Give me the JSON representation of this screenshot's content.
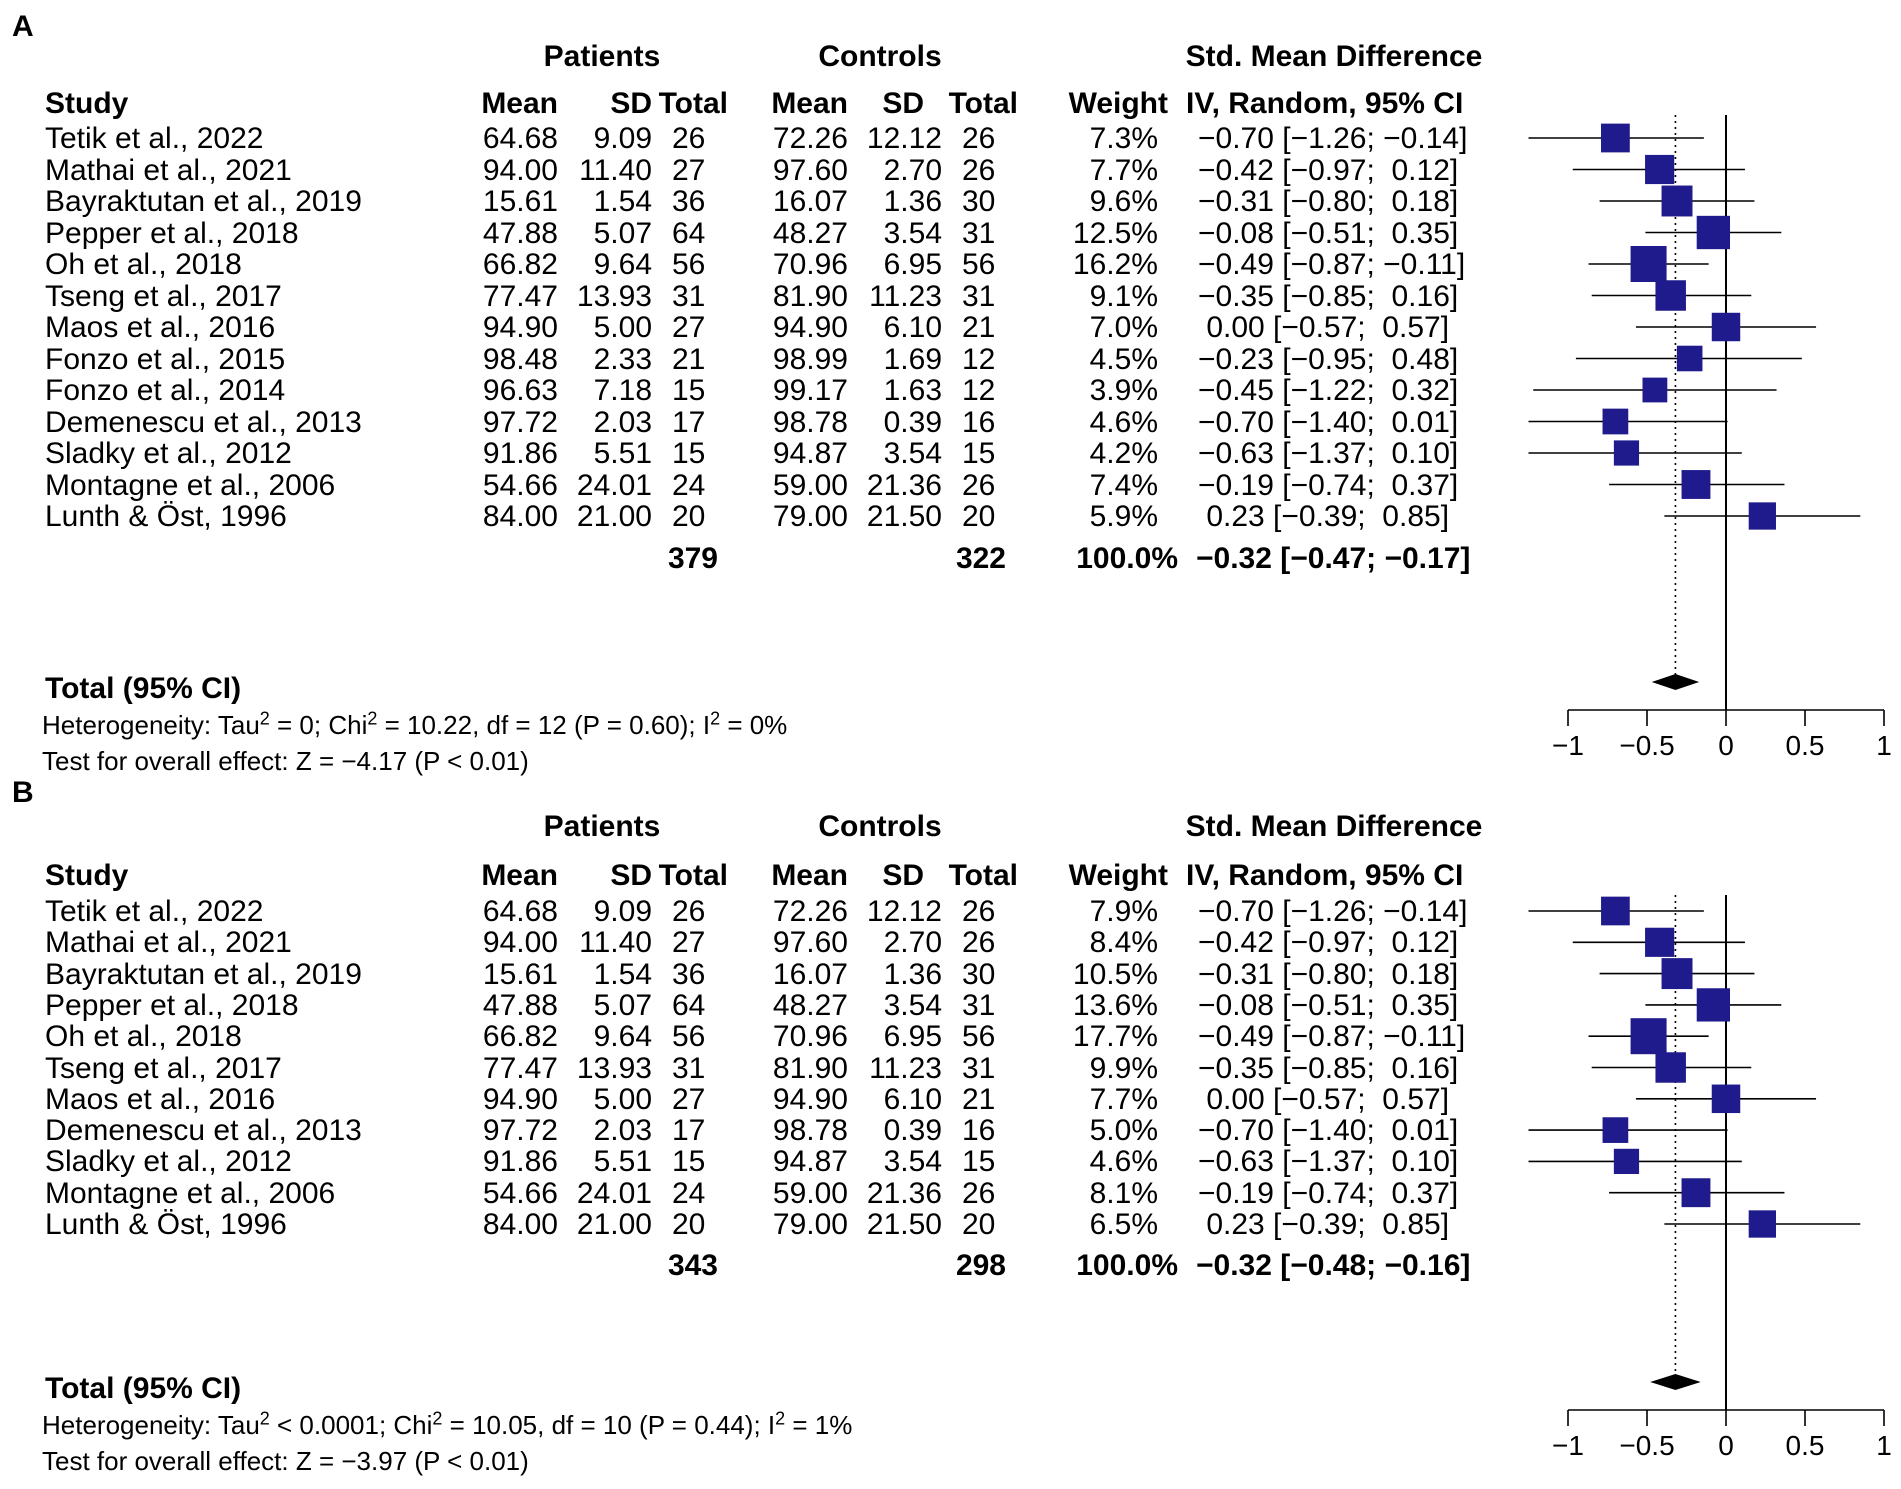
{
  "colors": {
    "square": "#1f1b8c",
    "line": "#000000"
  },
  "panels": [
    {
      "letter": "A",
      "group_patients": "Patients",
      "group_controls": "Controls",
      "effect_title": "Std. Mean Difference",
      "col_study": "Study",
      "col_mean": "Mean",
      "col_sd": "SD",
      "col_total": "Total",
      "col_weight": "Weight",
      "col_ci": "IV, Random, 95% CI",
      "rows": [
        {
          "study": "Tetik et al., 2022",
          "pm": "64.68",
          "psd": "9.09",
          "pn": "26",
          "cm": "72.26",
          "csd": "12.12",
          "cn": "26",
          "w": "7.3%",
          "ci": "−0.70 [−1.26; −0.14]"
        },
        {
          "study": "Mathai et al., 2021",
          "pm": "94.00",
          "psd": "11.40",
          "pn": "27",
          "cm": "97.60",
          "csd": "2.70",
          "cn": "26",
          "w": "7.7%",
          "ci": "−0.42 [−0.97;  0.12]"
        },
        {
          "study": "Bayraktutan et al., 2019",
          "pm": "15.61",
          "psd": "1.54",
          "pn": "36",
          "cm": "16.07",
          "csd": "1.36",
          "cn": "30",
          "w": "9.6%",
          "ci": "−0.31 [−0.80;  0.18]"
        },
        {
          "study": "Pepper et al., 2018",
          "pm": "47.88",
          "psd": "5.07",
          "pn": "64",
          "cm": "48.27",
          "csd": "3.54",
          "cn": "31",
          "w": "12.5%",
          "ci": "−0.08 [−0.51;  0.35]"
        },
        {
          "study": "Oh et al., 2018",
          "pm": "66.82",
          "psd": "9.64",
          "pn": "56",
          "cm": "70.96",
          "csd": "6.95",
          "cn": "56",
          "w": "16.2%",
          "ci": "−0.49 [−0.87; −0.11]"
        },
        {
          "study": "Tseng et al., 2017",
          "pm": "77.47",
          "psd": "13.93",
          "pn": "31",
          "cm": "81.90",
          "csd": "11.23",
          "cn": "31",
          "w": "9.1%",
          "ci": "−0.35 [−0.85;  0.16]"
        },
        {
          "study": "Maos et al., 2016",
          "pm": "94.90",
          "psd": "5.00",
          "pn": "27",
          "cm": "94.90",
          "csd": "6.10",
          "cn": "21",
          "w": "7.0%",
          "ci": " 0.00 [−0.57;  0.57]"
        },
        {
          "study": "Fonzo et al., 2015",
          "pm": "98.48",
          "psd": "2.33",
          "pn": "21",
          "cm": "98.99",
          "csd": "1.69",
          "cn": "12",
          "w": "4.5%",
          "ci": "−0.23 [−0.95;  0.48]"
        },
        {
          "study": "Fonzo et al., 2014",
          "pm": "96.63",
          "psd": "7.18",
          "pn": "15",
          "cm": "99.17",
          "csd": "1.63",
          "cn": "12",
          "w": "3.9%",
          "ci": "−0.45 [−1.22;  0.32]"
        },
        {
          "study": "Demenescu et al., 2013",
          "pm": "97.72",
          "psd": "2.03",
          "pn": "17",
          "cm": "98.78",
          "csd": "0.39",
          "cn": "16",
          "w": "4.6%",
          "ci": "−0.70 [−1.40;  0.01]"
        },
        {
          "study": "Sladky et al., 2012",
          "pm": "91.86",
          "psd": "5.51",
          "pn": "15",
          "cm": "94.87",
          "csd": "3.54",
          "cn": "15",
          "w": "4.2%",
          "ci": "−0.63 [−1.37;  0.10]"
        },
        {
          "study": "Montagne et al., 2006",
          "pm": "54.66",
          "psd": "24.01",
          "pn": "24",
          "cm": "59.00",
          "csd": "21.36",
          "cn": "26",
          "w": "7.4%",
          "ci": "−0.19 [−0.74;  0.37]"
        },
        {
          "study": "Lunth & Öst, 1996",
          "pm": "84.00",
          "psd": "21.00",
          "pn": "20",
          "cm": "79.00",
          "csd": "21.50",
          "cn": "20",
          "w": "5.9%",
          "ci": " 0.23 [−0.39;  0.85]"
        }
      ],
      "total_patients": "379",
      "total_controls": "322",
      "total_weight": "100.0%",
      "total_ci": "−0.32 [−0.47; −0.17]",
      "total_label": "Total (95% CI)",
      "het_a": "Heterogeneity: Tau",
      "het_b": " = 0; Chi",
      "het_c": " = 10.22, df = 12 (P = 0.60); I",
      "het_d": " = 0%",
      "overall": "Test for overall effect: Z = −4.17 (P < 0.01)"
    },
    {
      "letter": "B",
      "group_patients": "Patients",
      "group_controls": "Controls",
      "effect_title": "Std. Mean Difference",
      "col_study": "Study",
      "col_mean": "Mean",
      "col_sd": "SD",
      "col_total": "Total",
      "col_weight": "Weight",
      "col_ci": "IV, Random, 95% CI",
      "rows": [
        {
          "study": "Tetik et al., 2022",
          "pm": "64.68",
          "psd": "9.09",
          "pn": "26",
          "cm": "72.26",
          "csd": "12.12",
          "cn": "26",
          "w": "7.9%",
          "ci": "−0.70 [−1.26; −0.14]"
        },
        {
          "study": "Mathai et al., 2021",
          "pm": "94.00",
          "psd": "11.40",
          "pn": "27",
          "cm": "97.60",
          "csd": "2.70",
          "cn": "26",
          "w": "8.4%",
          "ci": "−0.42 [−0.97;  0.12]"
        },
        {
          "study": "Bayraktutan et al., 2019",
          "pm": "15.61",
          "psd": "1.54",
          "pn": "36",
          "cm": "16.07",
          "csd": "1.36",
          "cn": "30",
          "w": "10.5%",
          "ci": "−0.31 [−0.80;  0.18]"
        },
        {
          "study": "Pepper et al., 2018",
          "pm": "47.88",
          "psd": "5.07",
          "pn": "64",
          "cm": "48.27",
          "csd": "3.54",
          "cn": "31",
          "w": "13.6%",
          "ci": "−0.08 [−0.51;  0.35]"
        },
        {
          "study": "Oh et al., 2018",
          "pm": "66.82",
          "psd": "9.64",
          "pn": "56",
          "cm": "70.96",
          "csd": "6.95",
          "cn": "56",
          "w": "17.7%",
          "ci": "−0.49 [−0.87; −0.11]"
        },
        {
          "study": "Tseng et al., 2017",
          "pm": "77.47",
          "psd": "13.93",
          "pn": "31",
          "cm": "81.90",
          "csd": "11.23",
          "cn": "31",
          "w": "9.9%",
          "ci": "−0.35 [−0.85;  0.16]"
        },
        {
          "study": "Maos et al., 2016",
          "pm": "94.90",
          "psd": "5.00",
          "pn": "27",
          "cm": "94.90",
          "csd": "6.10",
          "cn": "21",
          "w": "7.7%",
          "ci": " 0.00 [−0.57;  0.57]"
        },
        {
          "study": "Demenescu et al., 2013",
          "pm": "97.72",
          "psd": "2.03",
          "pn": "17",
          "cm": "98.78",
          "csd": "0.39",
          "cn": "16",
          "w": "5.0%",
          "ci": "−0.70 [−1.40;  0.01]"
        },
        {
          "study": "Sladky et al., 2012",
          "pm": "91.86",
          "psd": "5.51",
          "pn": "15",
          "cm": "94.87",
          "csd": "3.54",
          "cn": "15",
          "w": "4.6%",
          "ci": "−0.63 [−1.37;  0.10]"
        },
        {
          "study": "Montagne et al., 2006",
          "pm": "54.66",
          "psd": "24.01",
          "pn": "24",
          "cm": "59.00",
          "csd": "21.36",
          "cn": "26",
          "w": "8.1%",
          "ci": "−0.19 [−0.74;  0.37]"
        },
        {
          "study": "Lunth & Öst, 1996",
          "pm": "84.00",
          "psd": "21.00",
          "pn": "20",
          "cm": "79.00",
          "csd": "21.50",
          "cn": "20",
          "w": "6.5%",
          "ci": " 0.23 [−0.39;  0.85]"
        }
      ],
      "total_patients": "343",
      "total_controls": "298",
      "total_weight": "100.0%",
      "total_ci": "−0.32 [−0.48; −0.16]",
      "total_label": "Total (95% CI)",
      "het_a": "Heterogeneity: Tau",
      "het_b": " < 0.0001; Chi",
      "het_c": " = 10.05, df = 10 (P = 0.44); I",
      "het_d": " = 1%",
      "overall": "Test for overall effect: Z = −3.97 (P < 0.01)"
    }
  ],
  "chart_data": [
    {
      "type": "forest",
      "title": "A",
      "measure": "Std. Mean Difference (IV, Random, 95% CI)",
      "studies": [
        "Tetik et al., 2022",
        "Mathai et al., 2021",
        "Bayraktutan et al., 2019",
        "Pepper et al., 2018",
        "Oh et al., 2018",
        "Tseng et al., 2017",
        "Maos et al., 2016",
        "Fonzo et al., 2015",
        "Fonzo et al., 2014",
        "Demenescu et al., 2013",
        "Sladky et al., 2012",
        "Montagne et al., 2006",
        "Lunth & Öst, 1996"
      ],
      "estimates": [
        -0.7,
        -0.42,
        -0.31,
        -0.08,
        -0.49,
        -0.35,
        0.0,
        -0.23,
        -0.45,
        -0.7,
        -0.63,
        -0.19,
        0.23
      ],
      "lower": [
        -1.26,
        -0.97,
        -0.8,
        -0.51,
        -0.87,
        -0.85,
        -0.57,
        -0.95,
        -1.22,
        -1.4,
        -1.37,
        -0.74,
        -0.39
      ],
      "upper": [
        -0.14,
        0.12,
        0.18,
        0.35,
        -0.11,
        0.16,
        0.57,
        0.48,
        0.32,
        0.01,
        0.1,
        0.37,
        0.85
      ],
      "weights": [
        7.3,
        7.7,
        9.6,
        12.5,
        16.2,
        9.1,
        7.0,
        4.5,
        3.9,
        4.6,
        4.2,
        7.4,
        5.9
      ],
      "pooled": {
        "estimate": -0.32,
        "lower": -0.47,
        "upper": -0.17
      },
      "xlim": [
        -1,
        1
      ],
      "xticks": [
        "−1",
        "−0.5",
        "0",
        "0.5",
        "1"
      ]
    },
    {
      "type": "forest",
      "title": "B",
      "measure": "Std. Mean Difference (IV, Random, 95% CI)",
      "studies": [
        "Tetik et al., 2022",
        "Mathai et al., 2021",
        "Bayraktutan et al., 2019",
        "Pepper et al., 2018",
        "Oh et al., 2018",
        "Tseng et al., 2017",
        "Maos et al., 2016",
        "Demenescu et al., 2013",
        "Sladky et al., 2012",
        "Montagne et al., 2006",
        "Lunth & Öst, 1996"
      ],
      "estimates": [
        -0.7,
        -0.42,
        -0.31,
        -0.08,
        -0.49,
        -0.35,
        0.0,
        -0.7,
        -0.63,
        -0.19,
        0.23
      ],
      "lower": [
        -1.26,
        -0.97,
        -0.8,
        -0.51,
        -0.87,
        -0.85,
        -0.57,
        -1.4,
        -1.37,
        -0.74,
        -0.39
      ],
      "upper": [
        -0.14,
        0.12,
        0.18,
        0.35,
        -0.11,
        0.16,
        0.57,
        0.01,
        0.1,
        0.37,
        0.85
      ],
      "weights": [
        7.9,
        8.4,
        10.5,
        13.6,
        17.7,
        9.9,
        7.7,
        5.0,
        4.6,
        8.1,
        6.5
      ],
      "pooled": {
        "estimate": -0.32,
        "lower": -0.48,
        "upper": -0.16
      },
      "xlim": [
        -1,
        1
      ],
      "xticks": [
        "−1",
        "−0.5",
        "0",
        "0.5",
        "1"
      ]
    }
  ]
}
